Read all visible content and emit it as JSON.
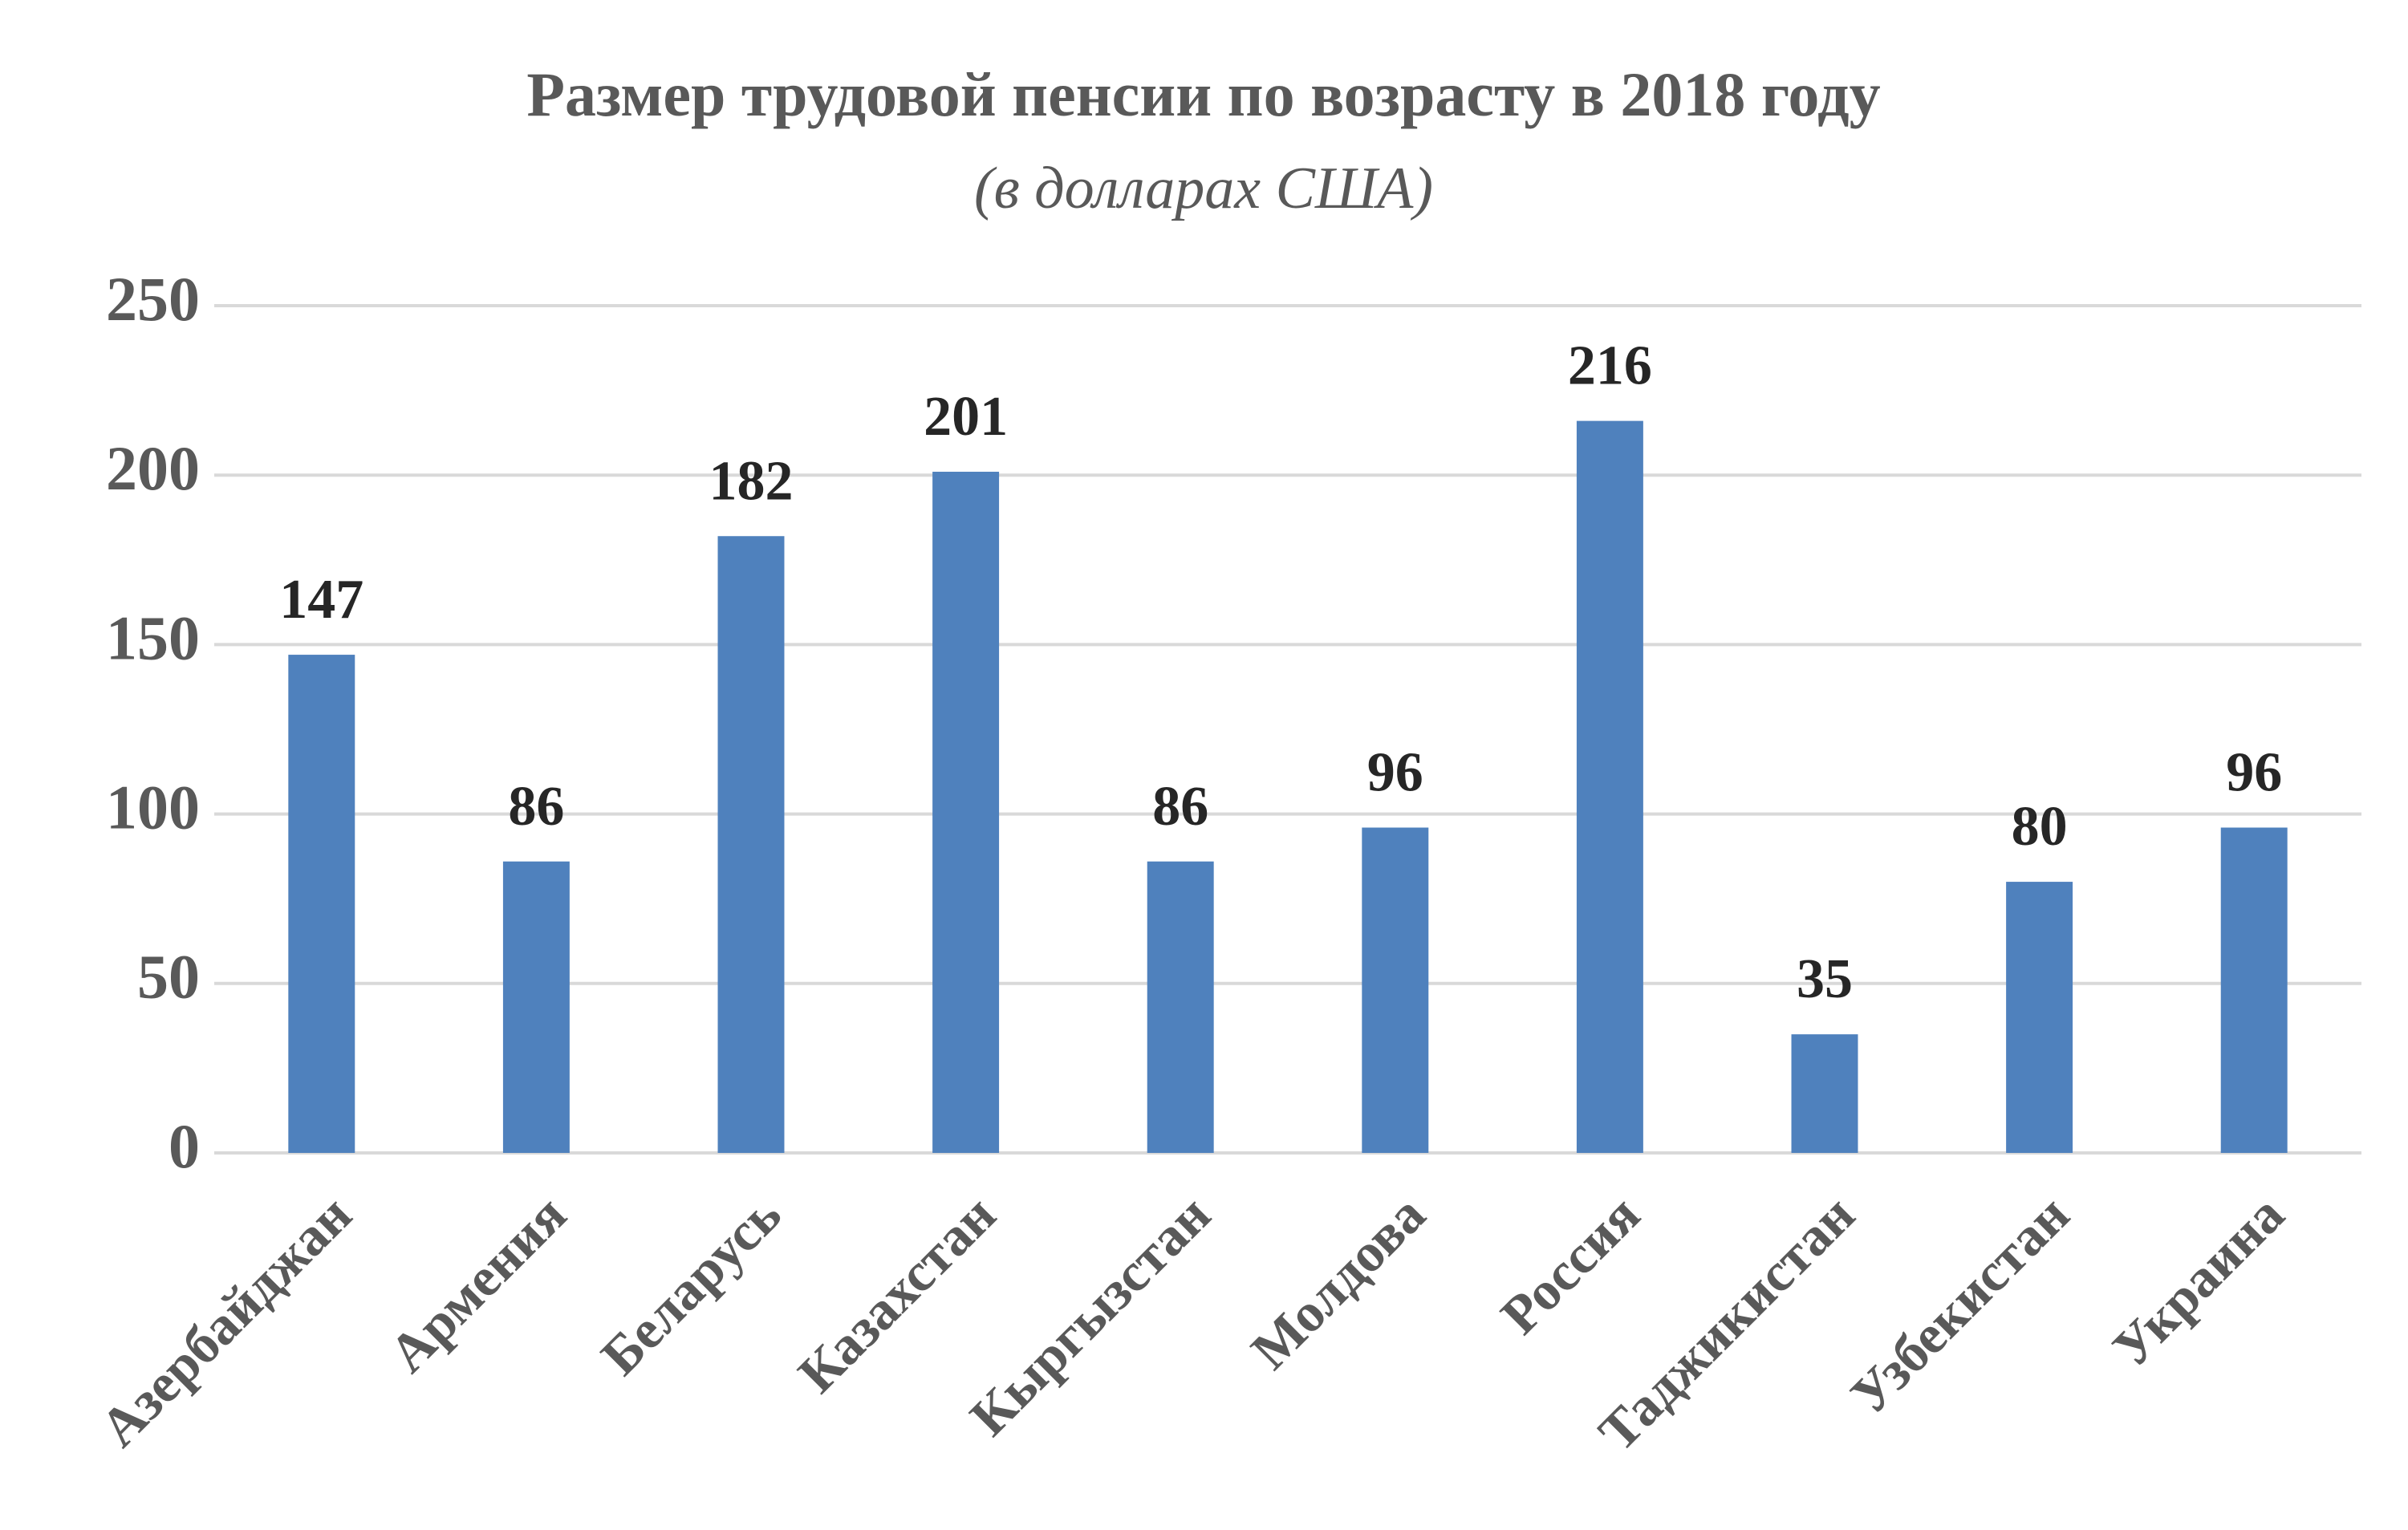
{
  "chart_data": {
    "type": "bar",
    "title": "Размер трудовой пенсии по возрасту в 2018 году",
    "subtitle": "(в долларах США)",
    "categories": [
      "Азербайджан",
      "Армения",
      "Беларусь",
      "Казахстан",
      "Кыргызстан",
      "Молдова",
      "Россия",
      "Таджикистан",
      "Узбекистан",
      "Украина"
    ],
    "values": [
      147,
      86,
      182,
      201,
      86,
      96,
      216,
      35,
      80,
      96
    ],
    "color": "#4f81bd",
    "ylim": [
      0,
      250
    ],
    "yticks": [
      0,
      50,
      100,
      150,
      200,
      250
    ],
    "grid": true
  }
}
